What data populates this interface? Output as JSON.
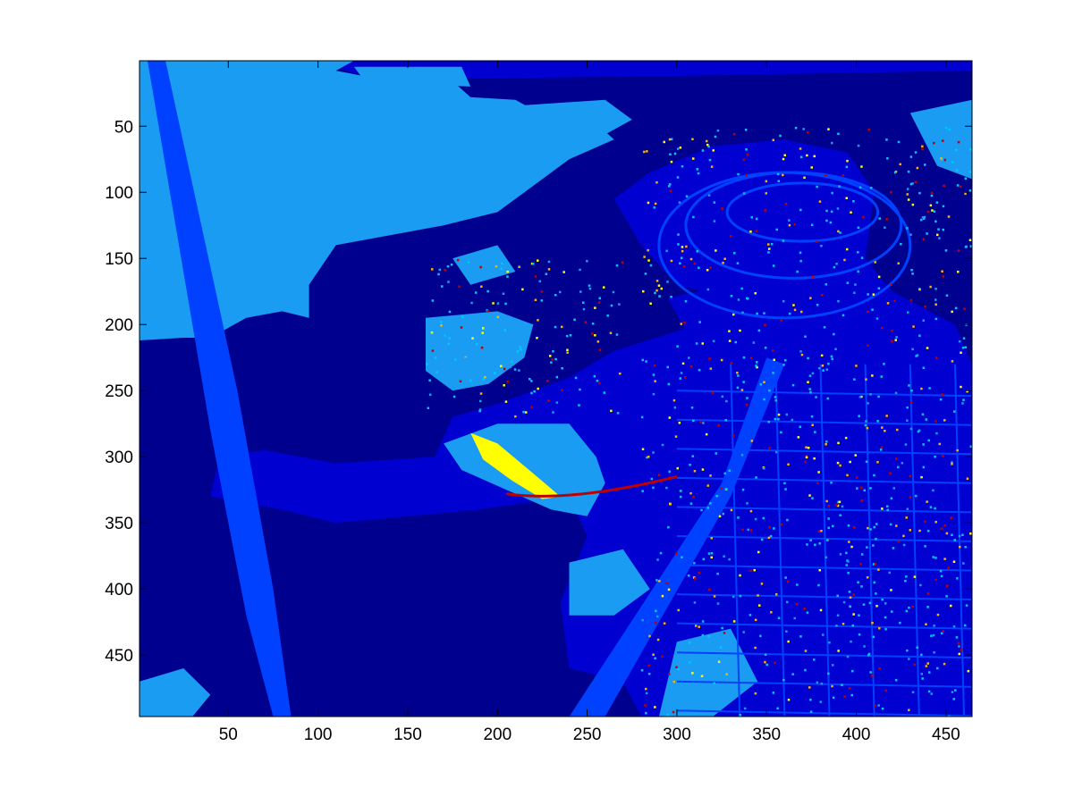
{
  "chart_data": {
    "type": "heatmap",
    "title": "",
    "xlabel": "",
    "ylabel": "",
    "xlim": [
      0.5,
      464.5
    ],
    "ylim": [
      0.5,
      496.5
    ],
    "y_reversed": true,
    "x_ticks": [
      50,
      100,
      150,
      200,
      250,
      300,
      350,
      400,
      450
    ],
    "y_ticks": [
      50,
      100,
      150,
      200,
      250,
      300,
      350,
      400,
      450
    ],
    "colormap": "jet",
    "grid": false,
    "legend": "none",
    "colors": {
      "background": "#00008f",
      "level_1": "#0000d0",
      "level_2": "#0040ff",
      "level_3": "#1a9cf2",
      "level_4": "#00c8ff",
      "level_5": "#ffff00",
      "level_6": "#ffb000",
      "level_7": "#c00000"
    }
  }
}
